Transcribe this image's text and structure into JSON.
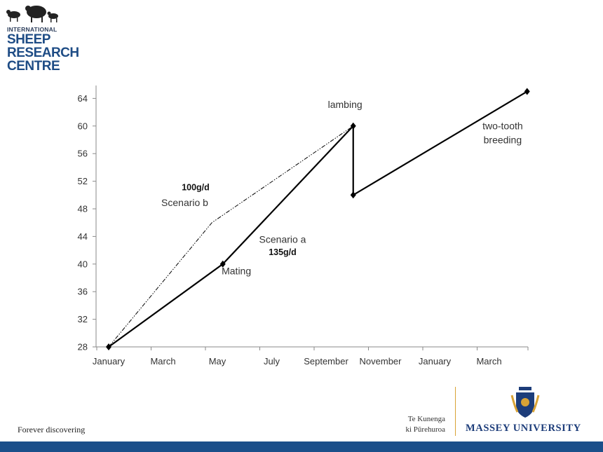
{
  "branding": {
    "logo_line1": "INTERNATIONAL",
    "logo_line2": "SHEEP",
    "logo_line3": "RESEARCH",
    "logo_line4": "CENTRE",
    "tagline": "Forever discovering",
    "maori_line1": "Te Kunenga",
    "maori_line2": "ki Pūrehuroa",
    "university": "MASSEY UNIVERSITY",
    "brand_color": "#1e4c85",
    "accent_color": "#d9a336",
    "bar_color": "#1b4f8a"
  },
  "chart_data": {
    "type": "line",
    "title": "",
    "xlabel": "",
    "ylabel": "",
    "ylim": [
      28,
      64
    ],
    "yticks": [
      28,
      32,
      36,
      40,
      44,
      48,
      52,
      56,
      60,
      64
    ],
    "xticks": [
      "January",
      "March",
      "May",
      "July",
      "September",
      "November",
      "January",
      "March"
    ],
    "xlim_months": [
      0,
      15
    ],
    "grid": false,
    "series": [
      {
        "name": "",
        "style": "solid",
        "color": "#000000",
        "points": [
          {
            "month": 0,
            "value": 28
          },
          {
            "month": 4.2,
            "value": 40
          },
          {
            "month": 9.0,
            "value": 60
          },
          {
            "month": 9.0,
            "value": 50
          },
          {
            "month": 15.4,
            "value": 65
          }
        ]
      },
      {
        "name": "",
        "style": "dashdot",
        "color": "#000000",
        "points": [
          {
            "month": 0,
            "value": 28
          },
          {
            "month": 3.8,
            "value": 46
          },
          {
            "month": 9.0,
            "value": 60
          }
        ]
      }
    ],
    "annotations": [
      {
        "text": "lambing",
        "month": 8.7,
        "value": 62.6
      },
      {
        "text": "two-tooth",
        "month": 14.5,
        "value": 59.5
      },
      {
        "text": "breeding",
        "month": 14.5,
        "value": 57.5
      },
      {
        "text": "100g/d",
        "month": 3.2,
        "value": 50.7
      },
      {
        "text": "Scenario b",
        "month": 2.8,
        "value": 48.4
      },
      {
        "text": "Scenario a",
        "month": 6.4,
        "value": 43.1
      },
      {
        "text": "135g/d",
        "month": 6.4,
        "value": 41.3
      },
      {
        "text": "Mating",
        "month": 4.7,
        "value": 38.5
      }
    ]
  }
}
